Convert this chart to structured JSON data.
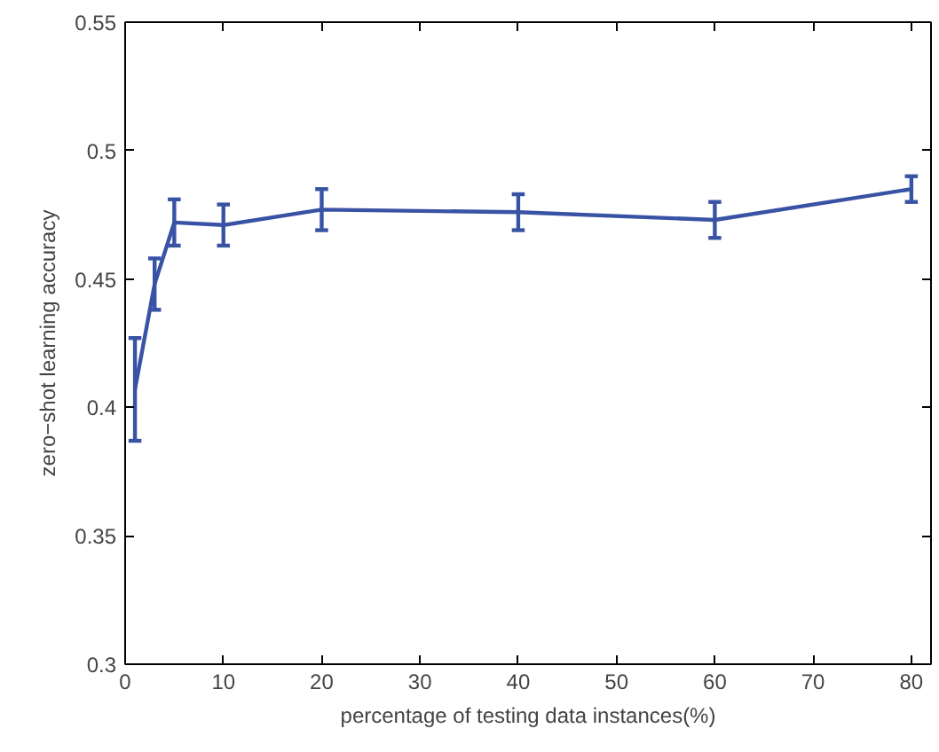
{
  "chart_data": {
    "type": "line",
    "xlabel": "percentage of testing data instances(%)",
    "ylabel": "zero−shot learning accuracy",
    "x": [
      1,
      3,
      5,
      10,
      20,
      40,
      60,
      80
    ],
    "series": [
      {
        "color": "#3953a4",
        "values": [
          0.407,
          0.448,
          0.472,
          0.471,
          0.477,
          0.476,
          0.473,
          0.485
        ],
        "errors": [
          [
            0.387,
            0.427
          ],
          [
            0.438,
            0.458
          ],
          [
            0.463,
            0.481
          ],
          [
            0.463,
            0.479
          ],
          [
            0.469,
            0.485
          ],
          [
            0.469,
            0.483
          ],
          [
            0.466,
            0.48
          ],
          [
            0.48,
            0.49
          ]
        ]
      }
    ],
    "xlim": [
      0,
      82
    ],
    "ylim": [
      0.3,
      0.55
    ],
    "xticks": [
      0,
      10,
      20,
      30,
      40,
      50,
      60,
      70,
      80
    ],
    "yticks": [
      0.3,
      0.35,
      0.4,
      0.45,
      0.5,
      0.55
    ],
    "grid": false,
    "marker": "none",
    "line_style": "solid"
  }
}
